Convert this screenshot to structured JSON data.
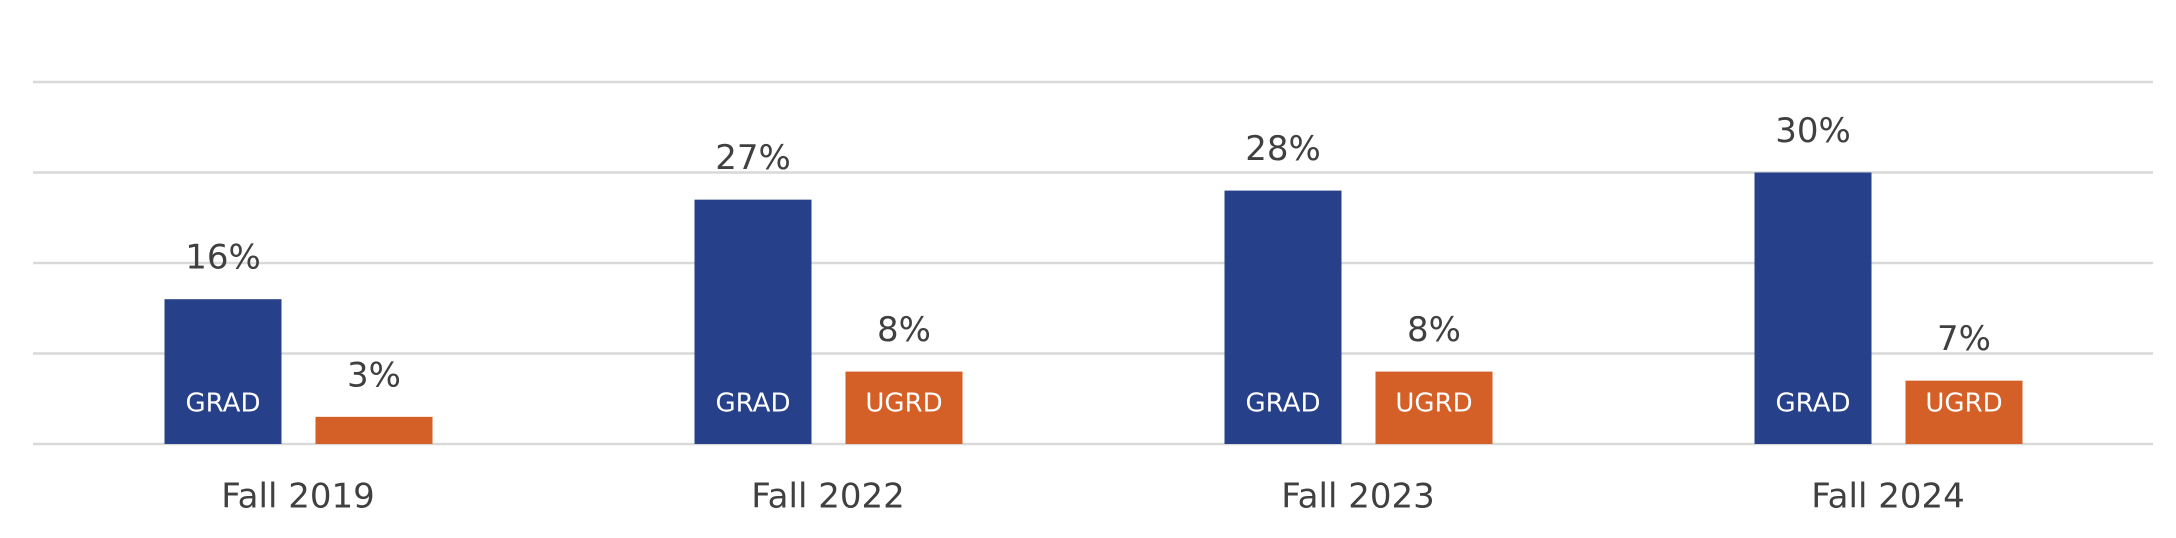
{
  "chart_data": {
    "type": "bar",
    "categories": [
      "Fall 2019",
      "Fall 2022",
      "Fall 2023",
      "Fall 2024"
    ],
    "series": [
      {
        "name": "GRAD",
        "color": "#26418a",
        "values": [
          16,
          27,
          28,
          30
        ],
        "value_labels": [
          "16%",
          "27%",
          "28%",
          "30%"
        ]
      },
      {
        "name": "UGRD",
        "color": "#d45f27",
        "values": [
          3,
          8,
          8,
          7
        ],
        "value_labels": [
          "3%",
          "8%",
          "8%",
          "7%"
        ]
      }
    ],
    "ylim": [
      0,
      40
    ],
    "yticks": [
      0,
      10,
      20,
      30,
      40
    ],
    "grid": true
  }
}
